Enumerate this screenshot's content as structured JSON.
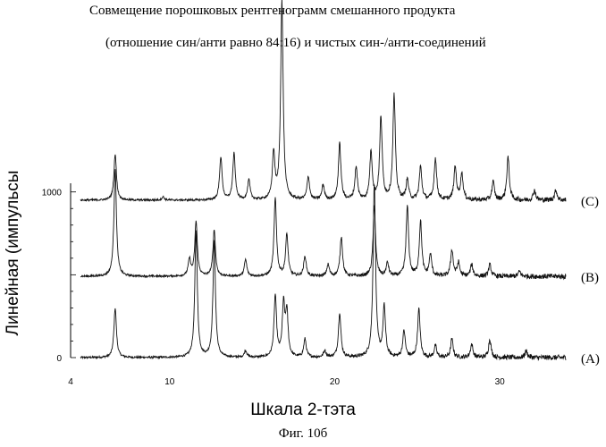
{
  "chart_data": {
    "type": "line",
    "title": "Совмещение порошковых рентгенограмм смешанного продукта",
    "subtitle": "(отношение син/анти равно 84:16) и чистых син-/анти-соединений",
    "xlabel": "Шкала 2-тэта",
    "ylabel": "Линейная (импульсы",
    "caption": "Фиг. 10б",
    "xlim": [
      4,
      34
    ],
    "ylim": [
      0,
      1700
    ],
    "x_ticks": [
      4,
      10,
      20,
      30
    ],
    "x_tick_labels": [
      "4",
      "10",
      "20",
      "30"
    ],
    "y_ticks": [
      0,
      1000
    ],
    "y_tick_labels": [
      "0",
      "1000"
    ],
    "grid": false,
    "series": [
      {
        "name": "(A)",
        "baseline": 0,
        "peaks": [
          [
            6.7,
            300
          ],
          [
            11.6,
            760
          ],
          [
            12.7,
            700
          ],
          [
            14.6,
            40
          ],
          [
            16.4,
            370
          ],
          [
            16.9,
            310
          ],
          [
            17.1,
            260
          ],
          [
            18.2,
            110
          ],
          [
            19.4,
            40
          ],
          [
            20.3,
            270
          ],
          [
            22.4,
            1040
          ],
          [
            23.0,
            300
          ],
          [
            24.2,
            160
          ],
          [
            25.1,
            290
          ],
          [
            26.1,
            70
          ],
          [
            27.1,
            110
          ],
          [
            28.3,
            80
          ],
          [
            29.4,
            110
          ],
          [
            31.6,
            40
          ]
        ]
      },
      {
        "name": "(B)",
        "baseline": 490,
        "peaks": [
          [
            6.7,
            650
          ],
          [
            11.2,
            100
          ],
          [
            11.6,
            330
          ],
          [
            12.7,
            280
          ],
          [
            14.6,
            100
          ],
          [
            16.4,
            470
          ],
          [
            17.1,
            250
          ],
          [
            18.2,
            120
          ],
          [
            19.6,
            70
          ],
          [
            20.4,
            240
          ],
          [
            22.4,
            420
          ],
          [
            23.2,
            80
          ],
          [
            24.4,
            420
          ],
          [
            25.2,
            330
          ],
          [
            25.8,
            130
          ],
          [
            27.1,
            160
          ],
          [
            27.5,
            80
          ],
          [
            28.3,
            70
          ],
          [
            29.4,
            70
          ],
          [
            31.2,
            30
          ]
        ]
      },
      {
        "name": "(C)",
        "baseline": 950,
        "peaks": [
          [
            6.7,
            280
          ],
          [
            9.6,
            20
          ],
          [
            13.1,
            260
          ],
          [
            13.9,
            280
          ],
          [
            14.8,
            120
          ],
          [
            16.3,
            280
          ],
          [
            16.8,
            1200
          ],
          [
            18.4,
            140
          ],
          [
            19.3,
            90
          ],
          [
            20.3,
            340
          ],
          [
            21.3,
            200
          ],
          [
            22.2,
            290
          ],
          [
            22.8,
            500
          ],
          [
            23.6,
            630
          ],
          [
            24.4,
            120
          ],
          [
            25.2,
            200
          ],
          [
            26.1,
            250
          ],
          [
            27.3,
            200
          ],
          [
            27.7,
            160
          ],
          [
            29.6,
            110
          ],
          [
            30.5,
            260
          ],
          [
            32.1,
            60
          ],
          [
            33.4,
            60
          ]
        ]
      }
    ]
  }
}
